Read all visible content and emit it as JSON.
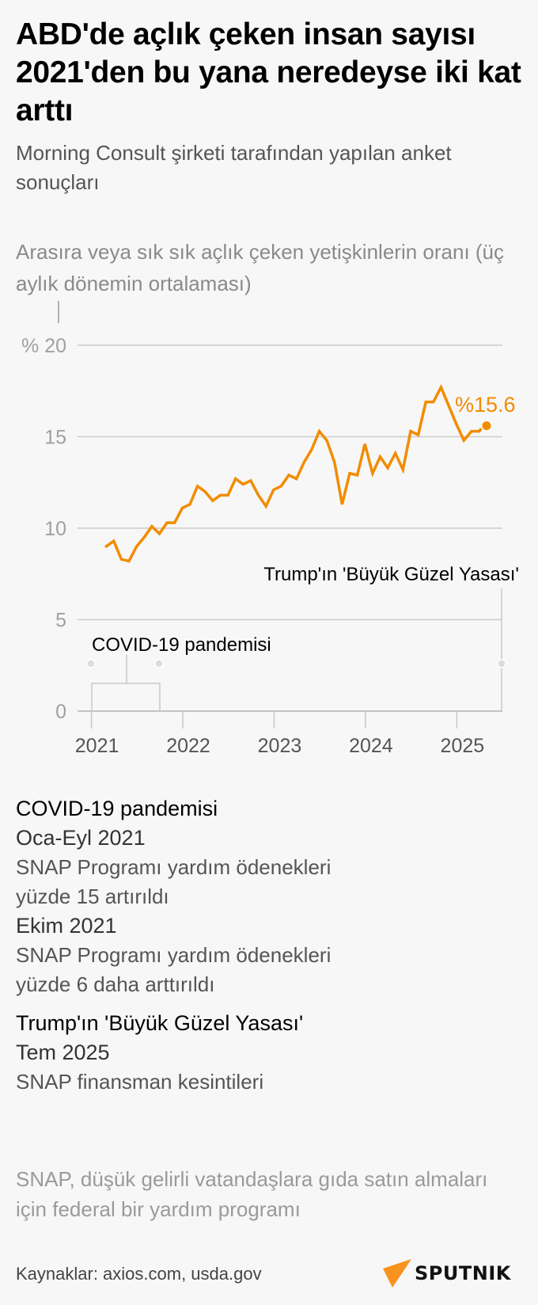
{
  "header": {
    "title": "ABD'de açlık çeken insan sayısı 2021'den bu yana neredeyse iki kat arttı",
    "subtitle": "Morning Consult şirketi tarafından yapılan anket sonuçları"
  },
  "chart_caption": "Arasıra veya sık sık açlık çeken yetişkinlerin oranı (üç aylık dönemin ortalaması)",
  "chart_data": {
    "type": "line",
    "title": "Arasıra veya sık sık açlık çeken yetişkinlerin oranı (üç aylık dönemin ortalaması)",
    "xlabel": "",
    "ylabel": "%",
    "ylim": [
      0,
      20
    ],
    "yticks": [
      0,
      5,
      10,
      15,
      20
    ],
    "ytick_labels": [
      "0",
      "5",
      "10",
      "15",
      "% 20"
    ],
    "xticks": [
      "2021",
      "2022",
      "2023",
      "2024",
      "2025"
    ],
    "grid": true,
    "x_start": "2021-03",
    "x_step": "month",
    "series": [
      {
        "name": "Açlık çeken yetişkinlerin oranı",
        "color": "#f28c00",
        "values": [
          9.0,
          9.3,
          8.3,
          8.2,
          9.0,
          9.5,
          10.1,
          9.7,
          10.3,
          10.3,
          11.1,
          11.3,
          12.3,
          12.0,
          11.5,
          11.8,
          11.8,
          12.7,
          12.4,
          12.6,
          11.8,
          11.2,
          12.1,
          12.3,
          12.9,
          12.7,
          13.6,
          14.3,
          15.3,
          14.8,
          13.6,
          11.3,
          13.0,
          12.9,
          14.6,
          13.0,
          13.9,
          13.3,
          14.1,
          13.2,
          15.3,
          15.1,
          16.9,
          16.9,
          17.7,
          16.7,
          15.7,
          14.8,
          15.3,
          15.3
        ]
      }
    ],
    "last_point": {
      "month_index": 52,
      "value": 15.6,
      "label": "%15.6"
    },
    "annotations": [
      {
        "label": "COVID-19 pandemisi",
        "type": "bracket",
        "start_month": 0,
        "end_month": 9
      },
      {
        "label": "Trump'ın 'Büyük Güzel Yasası'",
        "type": "marker",
        "month": 54
      }
    ]
  },
  "notes": [
    {
      "heading": "COVID-19 pandemisi",
      "items": [
        {
          "date": "Oca-Eyl 2021",
          "text": "SNAP Programı yardım ödenekleri yüzde 15 artırıldı"
        },
        {
          "date": "Ekim 2021",
          "text": "SNAP Programı yardım ödenekleri yüzde 6 daha arttırıldı"
        }
      ]
    },
    {
      "heading": "Trump'ın 'Büyük Güzel Yasası'",
      "items": [
        {
          "date": "Tem 2025",
          "text": "SNAP finansman kesintileri"
        }
      ]
    }
  ],
  "footnote": "SNAP, düşük gelirli vatandaşlara gıda satın almaları için federal bir yardım programı",
  "sources": "Kaynaklar: axios.com, usda.gov",
  "brand": {
    "name": "SPUTNIK",
    "accent": "#f7931e"
  },
  "colors": {
    "line": "#f28c00",
    "grid": "#c8c8c8",
    "axis_text": "#9a9a9a",
    "background": "#f7f7f7"
  }
}
